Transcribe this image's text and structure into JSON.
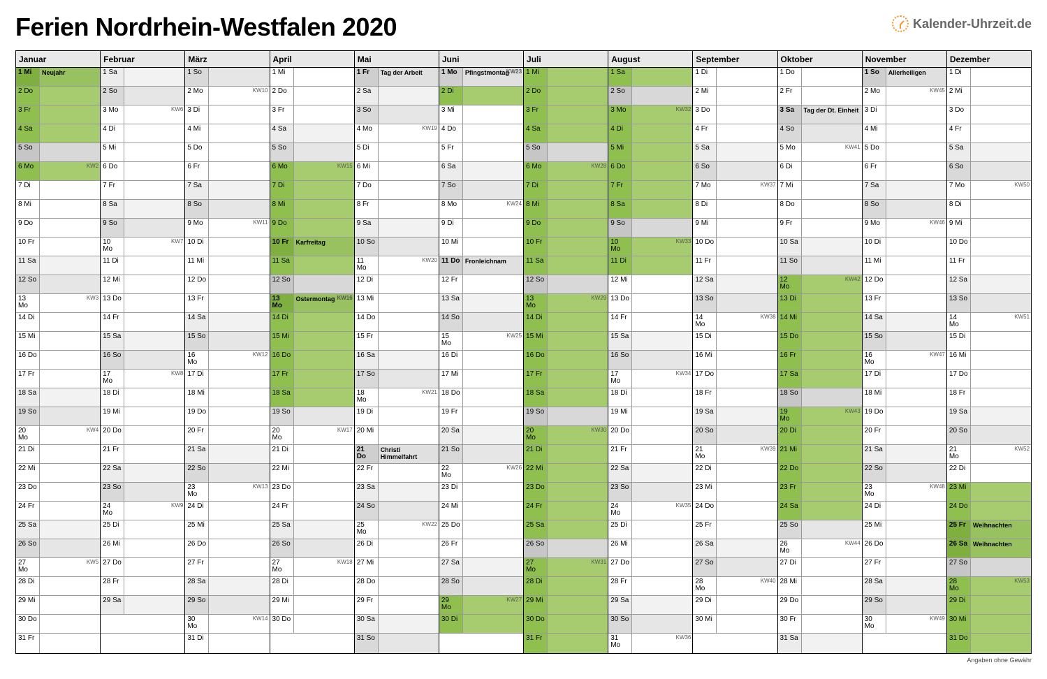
{
  "title": "Ferien Nordrhein-Westfalen 2020",
  "logo_text": "Kalender-Uhrzeit.de",
  "footer": "Angaben ohne Gewähr",
  "colors": {
    "vacation_bg": "#a6cc6f",
    "vacation_num": "#8fbf4f",
    "weekend_bg": "#ededed",
    "holiday_bg": "#e0e0e0",
    "border": "#000000"
  },
  "dow_abbr": [
    "Mo",
    "Di",
    "Mi",
    "Do",
    "Fr",
    "Sa",
    "So"
  ],
  "months": [
    {
      "name": "Januar",
      "days": 31,
      "first_dow": 2
    },
    {
      "name": "Februar",
      "days": 29,
      "first_dow": 5
    },
    {
      "name": "März",
      "days": 31,
      "first_dow": 6
    },
    {
      "name": "April",
      "days": 30,
      "first_dow": 2
    },
    {
      "name": "Mai",
      "days": 31,
      "first_dow": 4
    },
    {
      "name": "Juni",
      "days": 30,
      "first_dow": 0
    },
    {
      "name": "Juli",
      "days": 31,
      "first_dow": 2
    },
    {
      "name": "August",
      "days": 31,
      "first_dow": 5
    },
    {
      "name": "September",
      "days": 30,
      "first_dow": 1
    },
    {
      "name": "Oktober",
      "days": 31,
      "first_dow": 3
    },
    {
      "name": "November",
      "days": 30,
      "first_dow": 6
    },
    {
      "name": "Dezember",
      "days": 31,
      "first_dow": 1
    }
  ],
  "max_rows": 31,
  "holidays": {
    "0": {
      "1": "Neujahr"
    },
    "3": {
      "10": "Karfreitag",
      "13": "Ostermontag"
    },
    "4": {
      "1": "Tag der Arbeit",
      "21": "Christi Himmelfahrt"
    },
    "5": {
      "1": "Pfingstmontag",
      "11": "Fronleichnam"
    },
    "9": {
      "3": "Tag der Dt. Einheit"
    },
    "10": {
      "1": "Allerheiligen"
    },
    "11": {
      "25": "Weihnachten",
      "26": "Weihnachten"
    }
  },
  "vacations": [
    {
      "m": 0,
      "from": 1,
      "to": 6
    },
    {
      "m": 3,
      "from": 6,
      "to": 18
    },
    {
      "m": 5,
      "from": 2,
      "to": 2
    },
    {
      "m": 5,
      "from": 29,
      "to": 30
    },
    {
      "m": 6,
      "from": 1,
      "to": 31
    },
    {
      "m": 7,
      "from": 1,
      "to": 11
    },
    {
      "m": 9,
      "from": 12,
      "to": 24
    },
    {
      "m": 11,
      "from": 23,
      "to": 31
    }
  ],
  "kw_labels": {
    "0": {
      "6": "KW2",
      "13": "KW3",
      "20": "KW4",
      "27": "KW5"
    },
    "1": {
      "3": "KW6",
      "10": "KW7",
      "17": "KW8",
      "24": "KW9"
    },
    "2": {
      "2": "KW10",
      "9": "KW11",
      "16": "KW12",
      "23": "KW13",
      "30": "KW14"
    },
    "3": {
      "6": "KW15",
      "13": "KW16",
      "20": "KW17",
      "27": "KW18"
    },
    "4": {
      "4": "KW19",
      "11": "KW20",
      "18": "KW21",
      "25": "KW22"
    },
    "5": {
      "1": "KW23",
      "8": "KW24",
      "15": "KW25",
      "22": "KW26",
      "29": "KW27"
    },
    "6": {
      "6": "KW28",
      "13": "KW29",
      "20": "KW30",
      "27": "KW31"
    },
    "7": {
      "3": "KW32",
      "10": "KW33",
      "17": "KW34",
      "24": "KW35",
      "31": "KW36"
    },
    "8": {
      "7": "KW37",
      "14": "KW38",
      "21": "KW39",
      "28": "KW40"
    },
    "9": {
      "5": "KW41",
      "12": "KW42",
      "19": "KW43",
      "26": "KW44"
    },
    "10": {
      "2": "KW45",
      "9": "KW46",
      "16": "KW47",
      "23": "KW48",
      "30": "KW49"
    },
    "11": {
      "7": "KW50",
      "14": "KW51",
      "21": "KW52",
      "28": "KW53"
    }
  }
}
